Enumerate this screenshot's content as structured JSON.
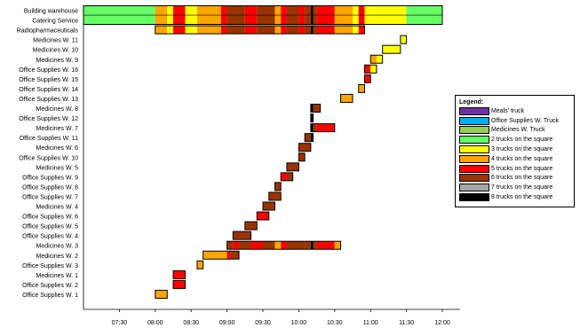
{
  "chart_data": {
    "type": "gantt",
    "time_ticks": [
      "07:30",
      "08:00",
      "08:30",
      "09:00",
      "09:30",
      "10:00",
      "10:30",
      "11:00",
      "11:30",
      "12:00"
    ],
    "time_range": [
      "07:00",
      "12:00"
    ],
    "categories": [
      "Building warehouse",
      "Catering Service",
      "Radiopharmaceuticals",
      "Medicines W. 11",
      "Medicines W. 10",
      "Medicines W. 9",
      "Office Supplies W. 16",
      "Office Supplies W. 15",
      "Office Supplies W. 14",
      "Office Supplies W. 13",
      "Medicines W. 8",
      "Office Supplies W. 12",
      "Medicines W. 7",
      "Office Supplies W. 11",
      "Medicines W. 6",
      "Office Supplies W. 10",
      "Medicines W. 5",
      "Office Supplies W. 9",
      "Office Supplies W. 8",
      "Office Supplies W. 7",
      "Medicines W. 4",
      "Office Supplies W. 6",
      "Office Supplies W. 5",
      "Office Supplies W. 4",
      "Medicines W. 3",
      "Medicines W. 2",
      "Office Supplies W. 3",
      "Medicines W. 1",
      "Office Supplies W. 2",
      "Office Supplies W. 1"
    ],
    "legend_title": "Legend:",
    "legend": [
      {
        "label": "Meals' truck",
        "color": "#7030a0"
      },
      {
        "label": "Office Supplies W. Truck",
        "color": "#00b0f0"
      },
      {
        "label": "Medicines W. Truck",
        "color": "#92d050"
      },
      {
        "label": "2 trucks on the square",
        "color": "#66ff66"
      },
      {
        "label": "3 trucks on the square",
        "color": "#ffff00"
      },
      {
        "label": "4 trucks on the square",
        "color": "#ffa500"
      },
      {
        "label": "5 trucks on the square",
        "color": "#ff0000"
      },
      {
        "label": "6 trucks on the square",
        "color": "#993300"
      },
      {
        "label": "7 trucks on the square",
        "color": "#a6a6a6"
      },
      {
        "label": "8 trucks on the square",
        "color": "#000000"
      }
    ],
    "square_timeline": [
      {
        "start": "07:00",
        "end": "08:00",
        "trucks": 2
      },
      {
        "start": "08:00",
        "end": "08:10",
        "trucks": 4
      },
      {
        "start": "08:10",
        "end": "08:15",
        "trucks": 3
      },
      {
        "start": "08:15",
        "end": "08:25",
        "trucks": 5
      },
      {
        "start": "08:25",
        "end": "08:35",
        "trucks": 3
      },
      {
        "start": "08:35",
        "end": "08:55",
        "trucks": 4
      },
      {
        "start": "08:55",
        "end": "09:00",
        "trucks": 5
      },
      {
        "start": "09:00",
        "end": "09:15",
        "trucks": 6
      },
      {
        "start": "09:15",
        "end": "09:25",
        "trucks": 5
      },
      {
        "start": "09:25",
        "end": "09:40",
        "trucks": 6
      },
      {
        "start": "09:40",
        "end": "09:45",
        "trucks": 4
      },
      {
        "start": "09:45",
        "end": "09:50",
        "trucks": 5
      },
      {
        "start": "09:50",
        "end": "10:00",
        "trucks": 6
      },
      {
        "start": "10:00",
        "end": "10:05",
        "trucks": 5
      },
      {
        "start": "10:05",
        "end": "10:10",
        "trucks": 6
      },
      {
        "start": "10:10",
        "end": "10:12",
        "trucks": 8
      },
      {
        "start": "10:12",
        "end": "10:15",
        "trucks": 6
      },
      {
        "start": "10:15",
        "end": "10:30",
        "trucks": 5
      },
      {
        "start": "10:30",
        "end": "10:45",
        "trucks": 4
      },
      {
        "start": "10:45",
        "end": "10:50",
        "trucks": 3
      },
      {
        "start": "10:50",
        "end": "10:55",
        "trucks": 5
      },
      {
        "start": "10:55",
        "end": "11:00",
        "trucks": 3
      },
      {
        "start": "11:00",
        "end": "11:30",
        "trucks": 3
      },
      {
        "start": "11:30",
        "end": "12:00",
        "trucks": 2
      }
    ],
    "tasks": [
      {
        "row": "Radiopharmaceuticals",
        "start": "08:00",
        "end": "10:55",
        "segments": [
          {
            "start": "08:00",
            "end": "08:10",
            "trucks": 4
          },
          {
            "start": "08:10",
            "end": "08:15",
            "trucks": 3
          },
          {
            "start": "08:15",
            "end": "08:25",
            "trucks": 5
          },
          {
            "start": "08:25",
            "end": "08:35",
            "trucks": 3
          },
          {
            "start": "08:35",
            "end": "08:55",
            "trucks": 4
          },
          {
            "start": "08:55",
            "end": "09:00",
            "trucks": 5
          },
          {
            "start": "09:00",
            "end": "09:15",
            "trucks": 6
          },
          {
            "start": "09:15",
            "end": "09:25",
            "trucks": 5
          },
          {
            "start": "09:25",
            "end": "09:40",
            "trucks": 6
          },
          {
            "start": "09:40",
            "end": "09:45",
            "trucks": 4
          },
          {
            "start": "09:45",
            "end": "09:50",
            "trucks": 5
          },
          {
            "start": "09:50",
            "end": "10:00",
            "trucks": 6
          },
          {
            "start": "10:00",
            "end": "10:05",
            "trucks": 5
          },
          {
            "start": "10:05",
            "end": "10:10",
            "trucks": 6
          },
          {
            "start": "10:10",
            "end": "10:12",
            "trucks": 8
          },
          {
            "start": "10:12",
            "end": "10:15",
            "trucks": 6
          },
          {
            "start": "10:15",
            "end": "10:30",
            "trucks": 5
          },
          {
            "start": "10:30",
            "end": "10:45",
            "trucks": 4
          },
          {
            "start": "10:45",
            "end": "10:50",
            "trucks": 3
          },
          {
            "start": "10:50",
            "end": "10:55",
            "trucks": 5
          }
        ]
      },
      {
        "row": "Medicines W. 11",
        "start": "11:25",
        "end": "11:30",
        "segments": [
          {
            "start": "11:25",
            "end": "11:30",
            "trucks": 3
          }
        ]
      },
      {
        "row": "Medicines W. 10",
        "start": "11:10",
        "end": "11:25",
        "segments": [
          {
            "start": "11:10",
            "end": "11:25",
            "trucks": 3
          }
        ]
      },
      {
        "row": "Medicines W. 9",
        "start": "11:00",
        "end": "11:10",
        "segments": [
          {
            "start": "11:00",
            "end": "11:05",
            "trucks": 4
          },
          {
            "start": "11:05",
            "end": "11:10",
            "trucks": 3
          }
        ]
      },
      {
        "row": "Office Supplies W. 16",
        "start": "10:55",
        "end": "11:05",
        "segments": [
          {
            "start": "10:55",
            "end": "11:00",
            "trucks": 5
          },
          {
            "start": "11:00",
            "end": "11:05",
            "trucks": 3
          }
        ]
      },
      {
        "row": "Office Supplies W. 15",
        "start": "10:55",
        "end": "11:00",
        "segments": [
          {
            "start": "10:55",
            "end": "11:00",
            "trucks": 5
          }
        ]
      },
      {
        "row": "Office Supplies W. 14",
        "start": "10:50",
        "end": "10:55",
        "segments": [
          {
            "start": "10:50",
            "end": "10:55",
            "trucks": 4
          }
        ]
      },
      {
        "row": "Office Supplies W. 13",
        "start": "10:35",
        "end": "10:45",
        "segments": [
          {
            "start": "10:35",
            "end": "10:45",
            "trucks": 4
          }
        ]
      },
      {
        "row": "Medicines W. 8",
        "start": "10:10",
        "end": "10:18",
        "segments": [
          {
            "start": "10:10",
            "end": "10:12",
            "trucks": 8
          },
          {
            "start": "10:12",
            "end": "10:18",
            "trucks": 6
          }
        ]
      },
      {
        "row": "Office Supplies W. 12",
        "start": "10:10",
        "end": "10:12",
        "segments": [
          {
            "start": "10:10",
            "end": "10:12",
            "trucks": 8
          }
        ]
      },
      {
        "row": "Medicines W. 7",
        "start": "10:10",
        "end": "10:30",
        "segments": [
          {
            "start": "10:10",
            "end": "10:12",
            "trucks": 8
          },
          {
            "start": "10:12",
            "end": "10:15",
            "trucks": 6
          },
          {
            "start": "10:15",
            "end": "10:30",
            "trucks": 5
          }
        ]
      },
      {
        "row": "Office Supplies W. 11",
        "start": "10:05",
        "end": "10:12",
        "segments": [
          {
            "start": "10:05",
            "end": "10:10",
            "trucks": 6
          },
          {
            "start": "10:10",
            "end": "10:12",
            "trucks": 8
          }
        ]
      },
      {
        "row": "Medicines W. 6",
        "start": "10:00",
        "end": "10:10",
        "segments": [
          {
            "start": "10:00",
            "end": "10:10",
            "trucks": 6
          }
        ]
      },
      {
        "row": "Office Supplies W. 10",
        "start": "10:00",
        "end": "10:05",
        "segments": [
          {
            "start": "10:00",
            "end": "10:05",
            "trucks": 6
          }
        ]
      },
      {
        "row": "Medicines W. 5",
        "start": "09:50",
        "end": "10:00",
        "segments": [
          {
            "start": "09:50",
            "end": "10:00",
            "trucks": 6
          }
        ]
      },
      {
        "row": "Office Supplies W. 9",
        "start": "09:45",
        "end": "09:55",
        "segments": [
          {
            "start": "09:45",
            "end": "09:50",
            "trucks": 5
          },
          {
            "start": "09:50",
            "end": "09:55",
            "trucks": 6
          }
        ]
      },
      {
        "row": "Office Supplies W. 8",
        "start": "09:40",
        "end": "09:45",
        "segments": [
          {
            "start": "09:40",
            "end": "09:45",
            "trucks": 6
          }
        ]
      },
      {
        "row": "Office Supplies W. 7",
        "start": "09:35",
        "end": "09:45",
        "segments": [
          {
            "start": "09:35",
            "end": "09:45",
            "trucks": 6
          }
        ]
      },
      {
        "row": "Medicines W. 4",
        "start": "09:30",
        "end": "09:40",
        "segments": [
          {
            "start": "09:30",
            "end": "09:40",
            "trucks": 6
          }
        ]
      },
      {
        "row": "Office Supplies W. 6",
        "start": "09:25",
        "end": "09:35",
        "segments": [
          {
            "start": "09:25",
            "end": "09:35",
            "trucks": 5
          }
        ]
      },
      {
        "row": "Office Supplies W. 5",
        "start": "09:15",
        "end": "09:25",
        "segments": [
          {
            "start": "09:15",
            "end": "09:25",
            "trucks": 6
          }
        ]
      },
      {
        "row": "Office Supplies W. 4",
        "start": "09:05",
        "end": "09:20",
        "segments": [
          {
            "start": "09:05",
            "end": "09:20",
            "trucks": 6
          }
        ]
      },
      {
        "row": "Medicines W. 3",
        "start": "09:00",
        "end": "10:35",
        "segments": [
          {
            "start": "09:00",
            "end": "09:05",
            "trucks": 6
          },
          {
            "start": "09:05",
            "end": "09:10",
            "trucks": 5
          },
          {
            "start": "09:10",
            "end": "09:20",
            "trucks": 6
          },
          {
            "start": "09:20",
            "end": "09:30",
            "trucks": 5
          },
          {
            "start": "09:30",
            "end": "09:40",
            "trucks": 6
          },
          {
            "start": "09:40",
            "end": "09:45",
            "trucks": 4
          },
          {
            "start": "09:45",
            "end": "09:50",
            "trucks": 5
          },
          {
            "start": "09:50",
            "end": "10:05",
            "trucks": 6
          },
          {
            "start": "10:05",
            "end": "10:10",
            "trucks": 6
          },
          {
            "start": "10:10",
            "end": "10:12",
            "trucks": 8
          },
          {
            "start": "10:12",
            "end": "10:15",
            "trucks": 6
          },
          {
            "start": "10:15",
            "end": "10:30",
            "trucks": 5
          },
          {
            "start": "10:30",
            "end": "10:35",
            "trucks": 4
          }
        ]
      },
      {
        "row": "Medicines W. 2",
        "start": "08:40",
        "end": "09:10",
        "segments": [
          {
            "start": "08:40",
            "end": "09:00",
            "trucks": 4
          },
          {
            "start": "09:00",
            "end": "09:03",
            "trucks": 5
          },
          {
            "start": "09:03",
            "end": "09:10",
            "trucks": 6
          }
        ]
      },
      {
        "row": "Office Supplies W. 3",
        "start": "08:35",
        "end": "08:40",
        "segments": [
          {
            "start": "08:35",
            "end": "08:40",
            "trucks": 4
          }
        ]
      },
      {
        "row": "Medicines W. 1",
        "start": "08:15",
        "end": "08:25",
        "segments": [
          {
            "start": "08:15",
            "end": "08:25",
            "trucks": 5
          }
        ]
      },
      {
        "row": "Office Supplies W. 2",
        "start": "08:15",
        "end": "08:25",
        "segments": [
          {
            "start": "08:15",
            "end": "08:25",
            "trucks": 5
          }
        ]
      },
      {
        "row": "Office Supplies W. 1",
        "start": "08:00",
        "end": "08:10",
        "segments": [
          {
            "start": "08:00",
            "end": "08:10",
            "trucks": 4
          }
        ]
      }
    ],
    "truck_colors": {
      "2": "#66ff66",
      "3": "#ffff00",
      "4": "#ffa500",
      "5": "#ff0000",
      "6": "#993300",
      "7": "#a6a6a6",
      "8": "#000000"
    },
    "grid": false,
    "legend_position": "right"
  }
}
